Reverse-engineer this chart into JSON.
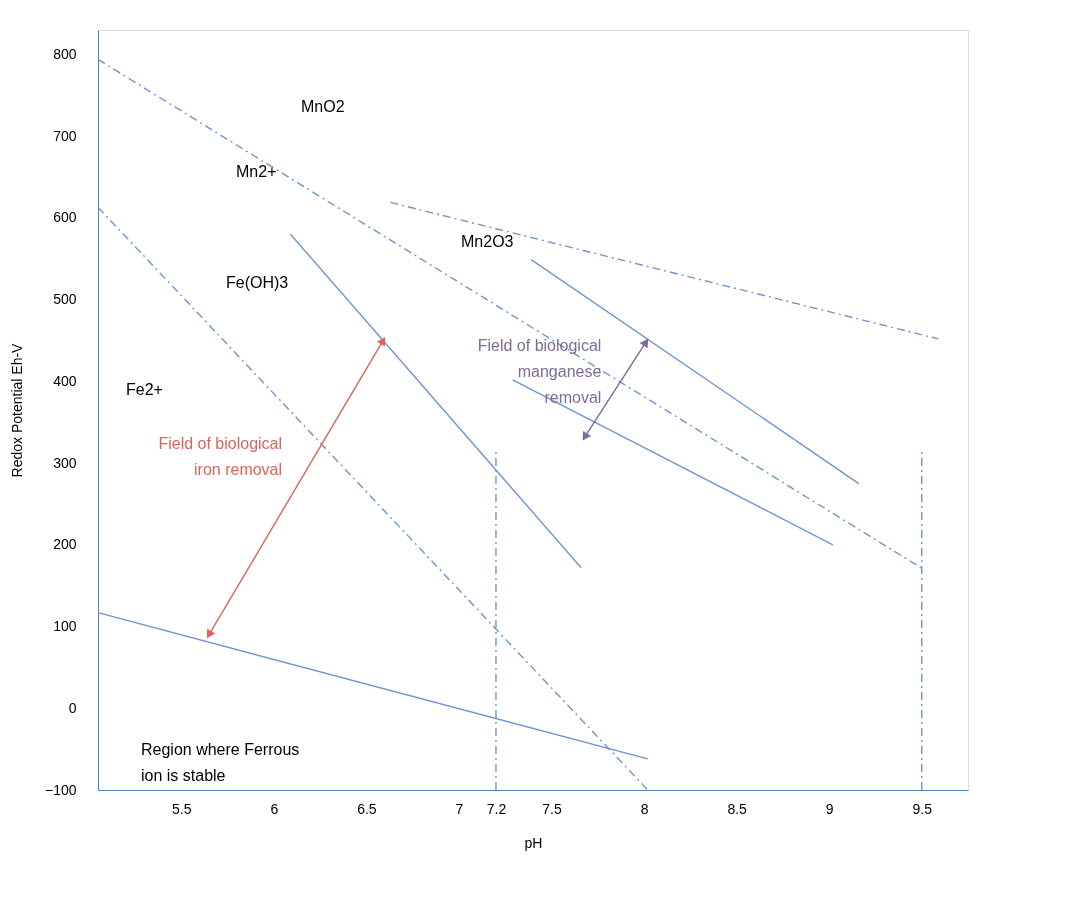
{
  "chart_data": {
    "type": "line",
    "xlabel": "pH",
    "ylabel": "Redox Potential Eh-V",
    "xlim": [
      5.05,
      9.75
    ],
    "ylim": [
      -100,
      830
    ],
    "xticks": [
      5.5,
      6,
      6.5,
      7,
      7.2,
      7.5,
      8,
      8.5,
      9,
      9.5
    ],
    "yticks": [
      -100,
      0,
      100,
      200,
      300,
      400,
      500,
      600,
      700,
      800
    ],
    "grid": false,
    "series": [
      {
        "color": "#6f95cf",
        "line_style": "dashed",
        "x": [
          5.05,
          9.51
        ],
        "values": [
          794,
          170
        ]
      },
      {
        "color": "#6f95cf",
        "line_style": "dashed",
        "x": [
          6.63,
          9.59
        ],
        "values": [
          619,
          452
        ]
      },
      {
        "color": "#6f95cf",
        "line_style": "dashed",
        "x": [
          5.05,
          8.02
        ],
        "values": [
          613,
          -100
        ]
      },
      {
        "color": "#6f95cf",
        "line_style": "solid",
        "x": [
          6.09,
          7.66
        ],
        "values": [
          580,
          172
        ]
      },
      {
        "color": "#6f95cf",
        "line_style": "solid",
        "x": [
          7.39,
          9.16
        ],
        "values": [
          549,
          275
        ]
      },
      {
        "color": "#6f95cf",
        "line_style": "solid",
        "x": [
          7.29,
          9.02
        ],
        "values": [
          402,
          200
        ]
      },
      {
        "color": "#6f95cf",
        "line_style": "solid",
        "x": [
          5.05,
          8.02
        ],
        "values": [
          117,
          -62
        ]
      },
      {
        "color": "#6f95cf",
        "line_style": "dashed",
        "x": [
          7.2,
          7.2
        ],
        "values": [
          -100,
          315
        ]
      },
      {
        "color": "#6f95cf",
        "line_style": "dashed",
        "x": [
          9.5,
          9.5
        ],
        "values": [
          -100,
          315
        ]
      },
      {
        "name": "Field of biological\niron removal",
        "color": "#d9645a",
        "line_style": "solid",
        "marker": "triangle",
        "x": [
          5.65,
          6.59
        ],
        "values": [
          90,
          450
        ]
      },
      {
        "name": "Field of biological\nmanganese\nremoval",
        "color": "#7d6b9a",
        "line_style": "solid",
        "marker": "triangle",
        "x": [
          7.68,
          8.01
        ],
        "values": [
          332,
          448
        ]
      }
    ],
    "annotations": [
      "MnO2",
      "Mn2+",
      "Mn2O3",
      "Fe(OH)3",
      "Fe2+",
      "Region where Ferrous\nion is stable"
    ]
  }
}
